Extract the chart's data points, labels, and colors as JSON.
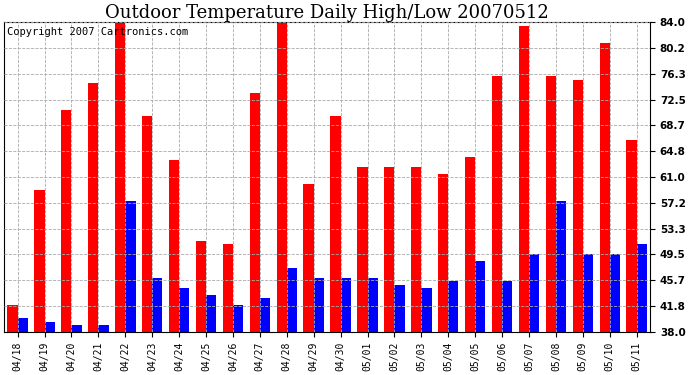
{
  "title": "Outdoor Temperature Daily High/Low 20070512",
  "copyright": "Copyright 2007 Cartronics.com",
  "dates": [
    "04/18",
    "04/19",
    "04/20",
    "04/21",
    "04/22",
    "04/23",
    "04/24",
    "04/25",
    "04/26",
    "04/27",
    "04/28",
    "04/29",
    "04/30",
    "05/01",
    "05/02",
    "05/03",
    "05/04",
    "05/05",
    "05/06",
    "05/07",
    "05/08",
    "05/09",
    "05/10",
    "05/11"
  ],
  "highs": [
    42.0,
    59.0,
    71.0,
    75.0,
    84.0,
    70.0,
    63.5,
    51.5,
    51.0,
    73.5,
    84.5,
    60.0,
    70.0,
    62.5,
    62.5,
    62.5,
    61.5,
    64.0,
    76.0,
    83.5,
    76.0,
    75.5,
    81.0,
    66.5
  ],
  "lows": [
    40.0,
    39.5,
    39.0,
    39.0,
    57.5,
    46.0,
    44.5,
    43.5,
    42.0,
    43.0,
    47.5,
    46.0,
    46.0,
    46.0,
    45.0,
    44.5,
    45.5,
    48.5,
    45.5,
    49.5,
    57.5,
    49.5,
    49.5,
    51.0
  ],
  "high_color": "#ff0000",
  "low_color": "#0000ff",
  "bg_color": "#ffffff",
  "grid_color": "#aaaaaa",
  "yticks": [
    38.0,
    41.8,
    45.7,
    49.5,
    53.3,
    57.2,
    61.0,
    64.8,
    68.7,
    72.5,
    76.3,
    80.2,
    84.0
  ],
  "ymin": 38.0,
  "ymax": 84.0,
  "title_fontsize": 13,
  "copyright_fontsize": 7.5
}
